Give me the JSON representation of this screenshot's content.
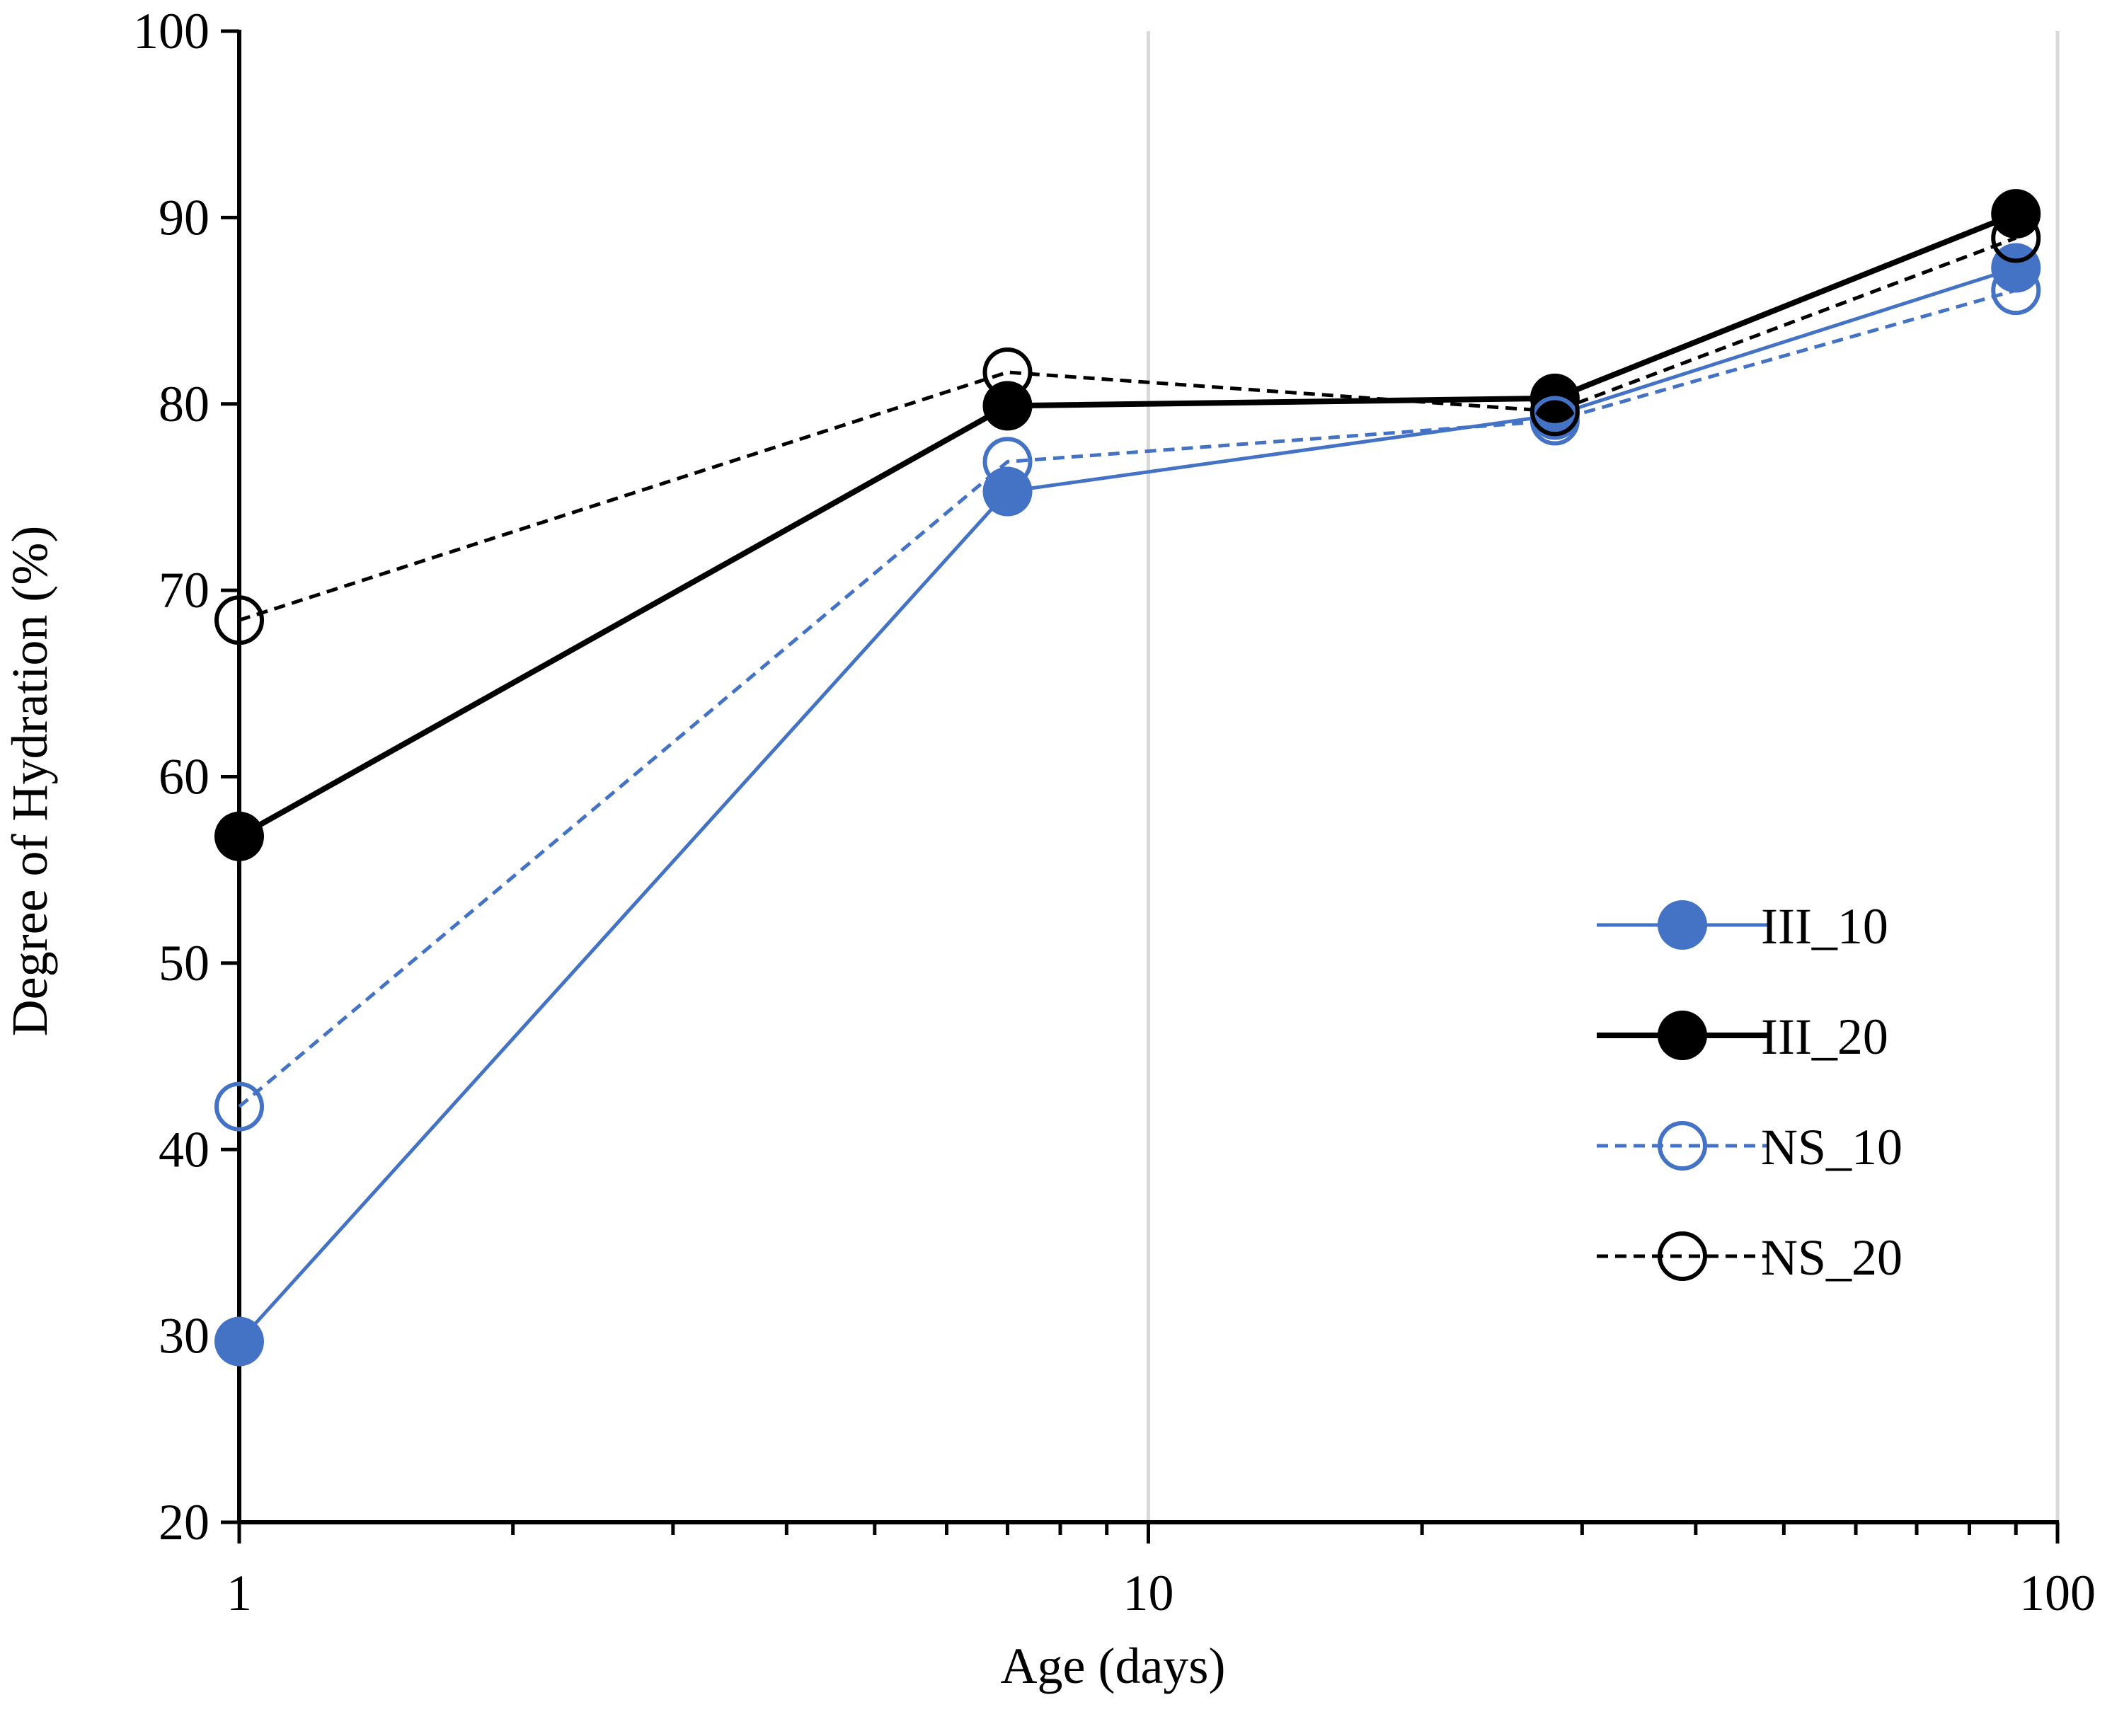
{
  "chart_data": {
    "type": "line",
    "title": "",
    "xlabel": "Age (days)",
    "ylabel": "Degree of Hydration (%)",
    "xscale": "log",
    "xlim": [
      1,
      100
    ],
    "ylim": [
      20,
      100
    ],
    "x_major_ticks": [
      1,
      10,
      100
    ],
    "x_tick_labels": [
      "1",
      "10",
      "100"
    ],
    "y_ticks": [
      20,
      30,
      40,
      50,
      60,
      70,
      80,
      90,
      100
    ],
    "y_tick_labels": [
      "20",
      "30",
      "40",
      "50",
      "60",
      "70",
      "80",
      "90",
      "100"
    ],
    "x": [
      1,
      7,
      28,
      90
    ],
    "series": [
      {
        "name": "III_10",
        "values": [
          29.7,
          75.3,
          79.4,
          87.3
        ],
        "color": "#4472c4",
        "line": "solid",
        "marker": "filled"
      },
      {
        "name": "III_20",
        "values": [
          56.8,
          79.9,
          80.3,
          90.2
        ],
        "color": "#000000",
        "line": "solid-bold",
        "marker": "filled"
      },
      {
        "name": "NS_10",
        "values": [
          42.3,
          76.9,
          79.1,
          86.1
        ],
        "color": "#4472c4",
        "line": "dashed",
        "marker": "hollow"
      },
      {
        "name": "NS_20",
        "values": [
          68.4,
          81.7,
          79.6,
          88.9
        ],
        "color": "#000000",
        "line": "dashed",
        "marker": "hollow"
      }
    ],
    "grid": "vertical major",
    "legend": "right-middle"
  }
}
